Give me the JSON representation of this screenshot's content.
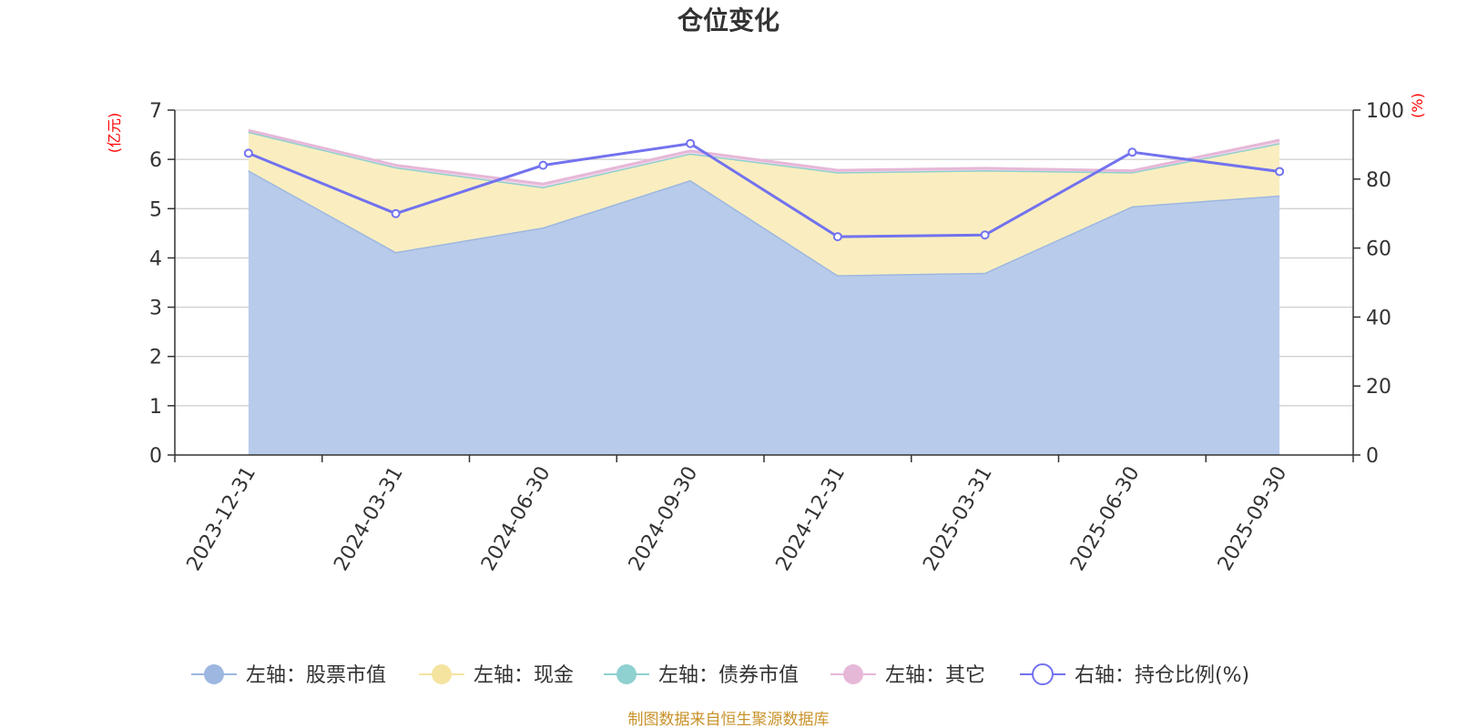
{
  "chart_data": {
    "type": "area",
    "title": "仓位变化",
    "categories": [
      "2023-12-31",
      "2024-03-31",
      "2024-06-30",
      "2024-09-30",
      "2024-12-31",
      "2025-03-31",
      "2025-06-30",
      "2025-09-30"
    ],
    "left_axis": {
      "unit": "(亿元)",
      "ylim": [
        0,
        7
      ],
      "ticks": [
        "0",
        "1",
        "2",
        "3",
        "4",
        "5",
        "6",
        "7"
      ]
    },
    "right_axis": {
      "unit": "(%)",
      "ylim": [
        0,
        100
      ],
      "ticks": [
        "0",
        "20",
        "40",
        "60",
        "80",
        "100"
      ]
    },
    "series": [
      {
        "name": "左轴：股票市值",
        "axis": "left",
        "kind": "stacked-area",
        "color": "#9db7e0",
        "fill": "#b8cbea",
        "values": [
          5.78,
          4.12,
          4.62,
          5.58,
          3.65,
          3.7,
          5.05,
          5.27
        ]
      },
      {
        "name": "左轴：现金",
        "axis": "left",
        "kind": "stacked-area",
        "color": "#f5e4a0",
        "fill": "#faeec0",
        "values": [
          0.78,
          1.72,
          0.82,
          0.54,
          2.09,
          2.08,
          0.69,
          1.06
        ]
      },
      {
        "name": "左轴：债券市值",
        "axis": "left",
        "kind": "stacked-area",
        "color": "#8fd0d0",
        "fill": "#bfe6e6",
        "values": [
          0,
          0,
          0,
          0,
          0,
          0,
          0,
          0
        ]
      },
      {
        "name": "左轴：其它",
        "axis": "left",
        "kind": "stacked-area",
        "color": "#e6b8d8",
        "fill": "#f2d6e8",
        "values": [
          0.03,
          0.04,
          0.06,
          0.05,
          0.04,
          0.04,
          0.03,
          0.06
        ]
      },
      {
        "name": "右轴：持仓比例(%)",
        "axis": "right",
        "kind": "line",
        "color": "#7272ef",
        "values": [
          87.5,
          70.0,
          84.0,
          90.3,
          63.3,
          63.8,
          87.8,
          82.2
        ]
      }
    ],
    "legend_position": "bottom",
    "grid": true
  },
  "source_note": "制图数据来自恒生聚源数据库"
}
